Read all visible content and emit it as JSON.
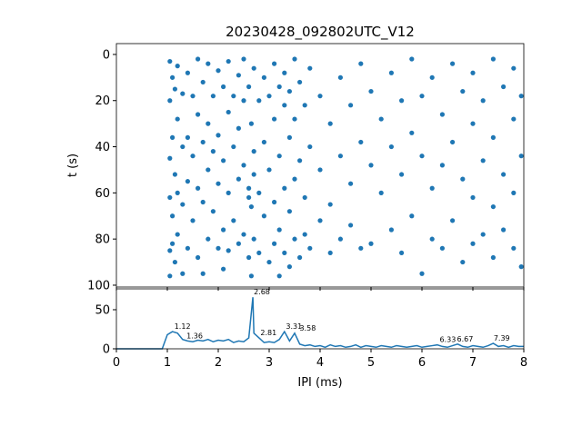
{
  "chart_data": [
    {
      "type": "scatter",
      "title": "20230428_092802UTC_V12",
      "y_label": "t (s)",
      "color": "#1f77b4",
      "xlim": [
        0,
        8
      ],
      "xticks": [
        0,
        1,
        2,
        3,
        4,
        5,
        6,
        7,
        8
      ],
      "ylim": [
        100.8,
        -4.7
      ],
      "yticks": [
        0,
        20,
        40,
        60,
        80,
        100
      ],
      "x": [
        1.05,
        1.05,
        1.05,
        1.05,
        1.05,
        1.05,
        1.1,
        1.1,
        1.1,
        1.1,
        1.15,
        1.15,
        1.15,
        1.2,
        1.2,
        1.2,
        1.2,
        1.3,
        1.3,
        1.3,
        1.3,
        1.4,
        1.4,
        1.4,
        1.4,
        1.5,
        1.5,
        1.5,
        1.6,
        1.6,
        1.6,
        1.6,
        1.7,
        1.7,
        1.7,
        1.7,
        1.8,
        1.8,
        1.8,
        1.8,
        1.9,
        1.9,
        1.9,
        2.0,
        2.0,
        2.0,
        2.0,
        2.1,
        2.1,
        2.1,
        2.1,
        2.2,
        2.2,
        2.2,
        2.2,
        2.3,
        2.3,
        2.3,
        2.4,
        2.4,
        2.4,
        2.4,
        2.5,
        2.5,
        2.5,
        2.5,
        2.6,
        2.6,
        2.6,
        2.6,
        2.65,
        2.65,
        2.65,
        2.7,
        2.7,
        2.7,
        2.7,
        2.8,
        2.8,
        2.8,
        2.9,
        2.9,
        2.9,
        3.0,
        3.0,
        3.0,
        3.1,
        3.1,
        3.1,
        3.1,
        3.2,
        3.2,
        3.2,
        3.2,
        3.3,
        3.3,
        3.3,
        3.3,
        3.4,
        3.4,
        3.4,
        3.4,
        3.5,
        3.5,
        3.5,
        3.5,
        3.6,
        3.6,
        3.6,
        3.7,
        3.7,
        3.7,
        3.8,
        3.8,
        3.8,
        4.0,
        4.0,
        4.0,
        4.2,
        4.2,
        4.2,
        4.4,
        4.4,
        4.4,
        4.6,
        4.6,
        4.6,
        4.8,
        4.8,
        4.8,
        5.0,
        5.0,
        5.0,
        5.2,
        5.2,
        5.4,
        5.4,
        5.4,
        5.6,
        5.6,
        5.6,
        5.8,
        5.8,
        5.8,
        6.0,
        6.0,
        6.0,
        6.2,
        6.2,
        6.2,
        6.4,
        6.4,
        6.4,
        6.6,
        6.6,
        6.6,
        6.8,
        6.8,
        6.8,
        7.0,
        7.0,
        7.0,
        7.0,
        7.2,
        7.2,
        7.2,
        7.4,
        7.4,
        7.4,
        7.4,
        7.6,
        7.6,
        7.6,
        7.8,
        7.8,
        7.8,
        7.8,
        7.95,
        7.95,
        7.95
      ],
      "values": [
        3,
        20,
        45,
        62,
        85,
        96,
        10,
        36,
        70,
        82,
        15,
        52,
        90,
        5,
        28,
        60,
        78,
        17,
        40,
        65,
        95,
        8,
        36,
        55,
        84,
        18,
        44,
        72,
        2,
        26,
        58,
        88,
        12,
        38,
        64,
        95,
        4,
        30,
        50,
        80,
        18,
        42,
        68,
        7,
        35,
        56,
        84,
        14,
        46,
        76,
        93,
        3,
        25,
        60,
        85,
        18,
        40,
        72,
        9,
        32,
        54,
        82,
        2,
        20,
        48,
        78,
        14,
        58,
        62,
        88,
        30,
        66,
        96,
        6,
        42,
        52,
        80,
        20,
        60,
        86,
        10,
        38,
        70,
        18,
        50,
        90,
        4,
        28,
        64,
        82,
        14,
        44,
        76,
        96,
        8,
        22,
        58,
        86,
        16,
        36,
        68,
        92,
        2,
        28,
        54,
        80,
        12,
        46,
        88,
        22,
        62,
        78,
        6,
        40,
        84,
        18,
        50,
        72,
        30,
        65,
        86,
        10,
        44,
        80,
        22,
        56,
        74,
        4,
        38,
        84,
        16,
        48,
        82,
        28,
        60,
        8,
        40,
        76,
        20,
        52,
        86,
        2,
        34,
        70,
        18,
        44,
        95,
        10,
        58,
        80,
        26,
        48,
        84,
        4,
        38,
        72,
        16,
        54,
        90,
        8,
        30,
        62,
        82,
        20,
        46,
        78,
        2,
        36,
        66,
        88,
        14,
        52,
        76,
        6,
        28,
        60,
        84,
        18,
        44,
        92
      ]
    },
    {
      "type": "line",
      "x_label": "IPI (ms)",
      "color": "#1f77b4",
      "xlim": [
        0,
        8
      ],
      "xticks": [
        0,
        1,
        2,
        3,
        4,
        5,
        6,
        7,
        8
      ],
      "ylim": [
        0,
        76.7
      ],
      "yticks": [
        0,
        50
      ],
      "x": [
        0,
        0.1,
        0.2,
        0.3,
        0.4,
        0.5,
        0.6,
        0.7,
        0.8,
        0.9,
        1.0,
        1.1,
        1.2,
        1.3,
        1.4,
        1.5,
        1.6,
        1.7,
        1.8,
        1.9,
        2.0,
        2.1,
        2.2,
        2.3,
        2.4,
        2.5,
        2.6,
        2.68,
        2.7,
        2.8,
        2.9,
        3.0,
        3.1,
        3.2,
        3.3,
        3.4,
        3.5,
        3.6,
        3.7,
        3.8,
        3.9,
        4.0,
        4.1,
        4.2,
        4.3,
        4.4,
        4.5,
        4.6,
        4.7,
        4.8,
        4.9,
        5.0,
        5.1,
        5.2,
        5.3,
        5.4,
        5.5,
        5.6,
        5.7,
        5.8,
        5.9,
        6.0,
        6.1,
        6.2,
        6.3,
        6.4,
        6.5,
        6.6,
        6.7,
        6.8,
        6.9,
        7.0,
        7.1,
        7.2,
        7.3,
        7.4,
        7.5,
        7.6,
        7.7,
        7.8,
        7.9,
        8.0
      ],
      "values": [
        0,
        0,
        0,
        0,
        0,
        0,
        0,
        0,
        0,
        0,
        18,
        22,
        20,
        12,
        10,
        9,
        11,
        10,
        12,
        9,
        11,
        10,
        12,
        8,
        10,
        9,
        14,
        66,
        20,
        14,
        8,
        9,
        8,
        12,
        22,
        10,
        20,
        6,
        4,
        5,
        3,
        4,
        2,
        5,
        3,
        4,
        2,
        3,
        5,
        2,
        4,
        3,
        2,
        4,
        3,
        2,
        4,
        3,
        2,
        3,
        4,
        2,
        3,
        4,
        5,
        3,
        2,
        4,
        6,
        3,
        2,
        4,
        3,
        2,
        4,
        7,
        3,
        4,
        2,
        4,
        3,
        3
      ],
      "annotations": [
        {
          "label": "1.12",
          "x": 1.12,
          "y": 22
        },
        {
          "label": "1.36",
          "x": 1.36,
          "y": 10
        },
        {
          "label": "2.68",
          "x": 2.68,
          "y": 66
        },
        {
          "label": "2.81",
          "x": 2.81,
          "y": 14
        },
        {
          "label": "3.31",
          "x": 3.31,
          "y": 22
        },
        {
          "label": "3.58",
          "x": 3.58,
          "y": 20
        },
        {
          "label": "6.33",
          "x": 6.33,
          "y": 5
        },
        {
          "label": "6.67",
          "x": 6.67,
          "y": 6
        },
        {
          "label": "7.39",
          "x": 7.39,
          "y": 7
        }
      ]
    }
  ]
}
